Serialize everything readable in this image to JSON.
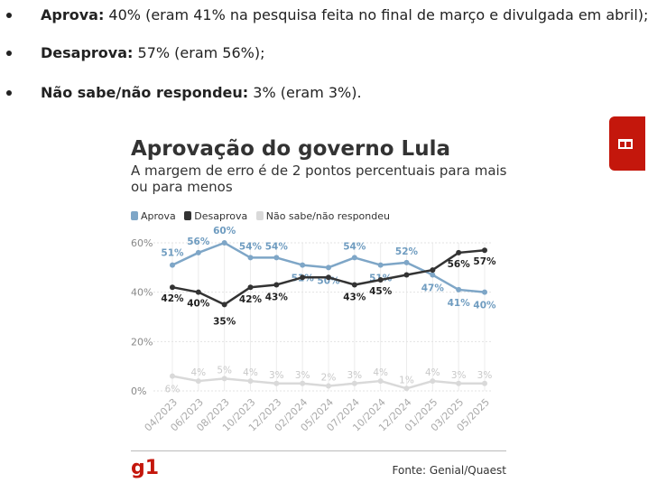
{
  "bullets": [
    {
      "bold": "Aprova:",
      "rest": " 40% (eram 41% na pesquisa feita no final de março e divulgada em abril);"
    },
    {
      "bold": "Desaprova:",
      "rest": " 57% (eram 56%);"
    },
    {
      "bold": "Não sabe/não respondeu:",
      "rest": " 3% (eram 3%)."
    }
  ],
  "side_tab": {
    "icon": "gift-icon"
  },
  "logo": "g1",
  "source": "Fonte: Genial/Quaest",
  "chart_data": {
    "type": "line",
    "title": "Aprovação do governo Lula",
    "subtitle": "A margem de erro é de 2 pontos percentuais para mais ou para menos",
    "categories": [
      "04/2023",
      "06/2023",
      "08/2023",
      "10/2023",
      "12/2023",
      "02/2024",
      "05/2024",
      "07/2024",
      "10/2024",
      "12/2024",
      "01/2025",
      "03/2025",
      "05/2025"
    ],
    "y_ticks": [
      "60%",
      "40%",
      "20%",
      "0%"
    ],
    "ylim": [
      0,
      60
    ],
    "grid": true,
    "legend_position": "top-left",
    "series": [
      {
        "name": "Aprova",
        "color": "#7ea6c7",
        "label_color": "#6f9cc0",
        "values": [
          51,
          56,
          60,
          54,
          54,
          51,
          50,
          54,
          51,
          52,
          47,
          41,
          40
        ]
      },
      {
        "name": "Desaprova",
        "color": "#333333",
        "label_color": "#222222",
        "values": [
          42,
          40,
          35,
          42,
          43,
          46,
          46,
          43,
          45,
          47,
          49,
          56,
          57
        ]
      },
      {
        "name": "Não sabe/não respondeu",
        "color": "#d9d9d9",
        "label_color": "#c8c8c8",
        "values": [
          6,
          4,
          5,
          4,
          3,
          3,
          2,
          3,
          4,
          1,
          4,
          3,
          3
        ]
      }
    ],
    "data_labels": {
      "Aprova": [
        "51%",
        "56%",
        "60%",
        "54%",
        "54%",
        "51%",
        "50%",
        "54%",
        "51%",
        "52%",
        "47%",
        "41%",
        "40%"
      ],
      "Desaprova": [
        "42%",
        "40%",
        "35%",
        "42%",
        "43%",
        "",
        "",
        "43%",
        "45%",
        "",
        "",
        "56%",
        "57%"
      ],
      "Não sabe/não respondeu": [
        "6%",
        "4%",
        "5%",
        "4%",
        "3%",
        "3%",
        "2%",
        "3%",
        "4%",
        "1%",
        "4%",
        "3%",
        "3%"
      ]
    }
  }
}
